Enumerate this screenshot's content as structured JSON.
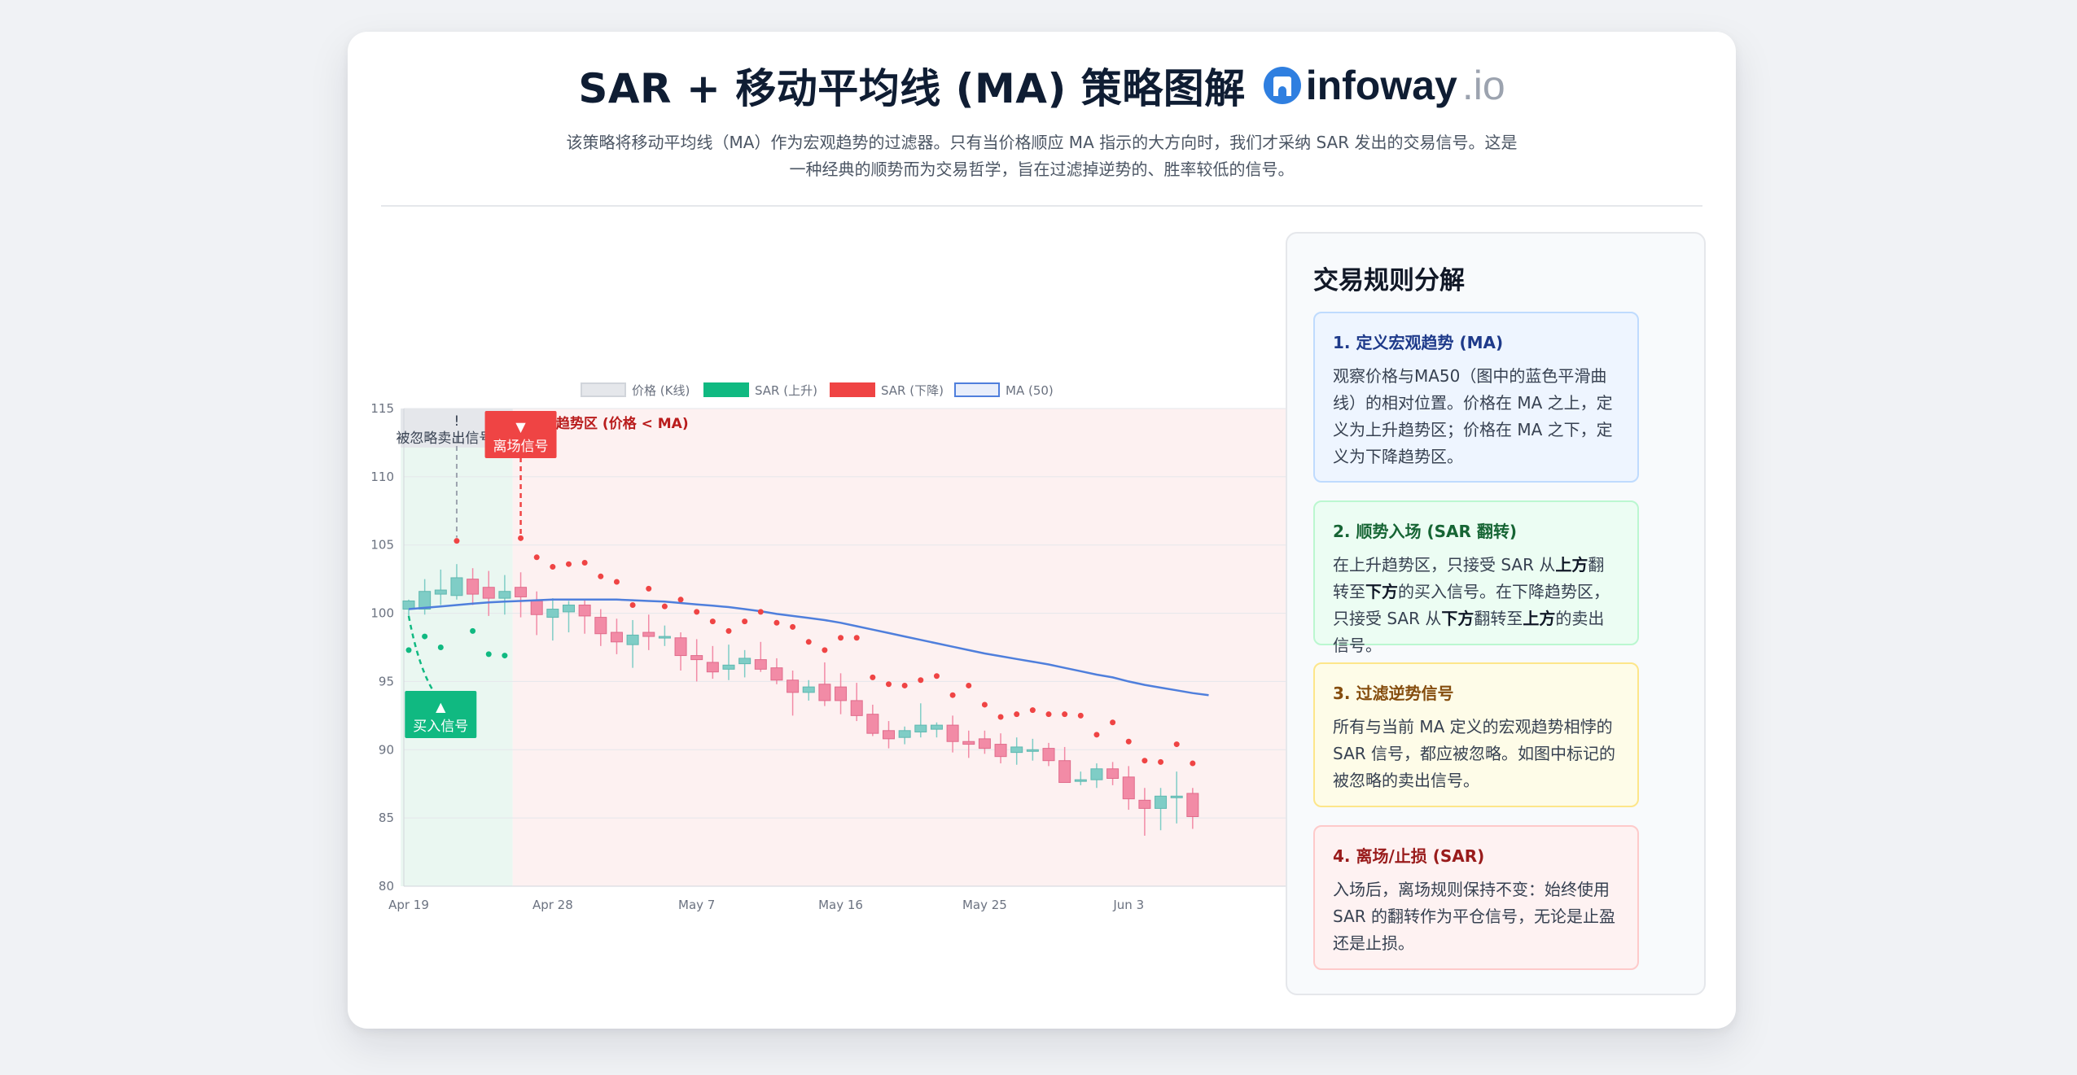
{
  "page": {
    "title": "SAR + 移动平均线 (MA) 策略图解",
    "brand_name": "infoway",
    "brand_tld": ".io",
    "subtitle": "该策略将移动平均线（MA）作为宏观趋势的过滤器。只有当价格顺应 MA 指示的大方向时，我们才采纳 SAR 发出的交易信号。这是一种经典的顺势而为交易哲学，旨在过滤掉逆势的、胜率较低的信号。"
  },
  "rules": {
    "title": "交易规则分解",
    "items": [
      {
        "heading": "1. 定义宏观趋势 (MA)",
        "parts": [
          {
            "t": "观察价格与MA50（图中的蓝色平滑曲线）的相对位置。价格在 MA 之上，定义为上升趋势区；价格在 MA 之下，定义为下降趋势区。"
          }
        ]
      },
      {
        "heading": "2. 顺势入场 (SAR 翻转)",
        "parts": [
          {
            "t": "在上升趋势区，只接受 SAR 从"
          },
          {
            "t": "上方",
            "b": true
          },
          {
            "t": "翻转至"
          },
          {
            "t": "下方",
            "b": true
          },
          {
            "t": "的买入信号。在下降趋势区，只接受 SAR 从"
          },
          {
            "t": "下方",
            "b": true
          },
          {
            "t": "翻转至"
          },
          {
            "t": "上方",
            "b": true
          },
          {
            "t": "的卖出信号。"
          }
        ]
      },
      {
        "heading": "3. 过滤逆势信号",
        "parts": [
          {
            "t": "所有与当前 MA 定义的宏观趋势相悖的 SAR 信号，都应被忽略。如图中标记的被忽略的卖出信号。"
          }
        ]
      },
      {
        "heading": "4. 离场/止损 (SAR)",
        "parts": [
          {
            "t": "入场后，离场规则保持不变：始终使用 SAR 的翻转作为平仓信号，无论是止盈还是止损。"
          }
        ]
      }
    ]
  },
  "colors": {
    "up": "#7fcdc6",
    "down": "#f28ba6",
    "sar_up": "#10b981",
    "sar_down": "#ef4444",
    "ma": "#4f7fdc",
    "uptrend_zone": "#eaf7f1",
    "downtrend_zone": "#fdf1f1",
    "ignored_zone": "#e5e7eb"
  },
  "chart_data": {
    "type": "candlestick",
    "title": "",
    "legend": [
      "价格 (K线)",
      "SAR (上升)",
      "SAR (下降)",
      "MA (50)"
    ],
    "legend_position": "top-center",
    "ylim": [
      80,
      115
    ],
    "yticks": [
      80,
      85,
      90,
      95,
      100,
      105,
      110,
      115
    ],
    "xticks": [
      "Apr 19",
      "Apr 28",
      "May 7",
      "May 16",
      "May 25",
      "Jun 3"
    ],
    "grid": true,
    "dates": [
      "Apr 19",
      "Apr 20",
      "Apr 21",
      "Apr 22",
      "Apr 23",
      "Apr 24",
      "Apr 25",
      "Apr 26",
      "Apr 27",
      "Apr 28",
      "Apr 29",
      "Apr 30",
      "May 1",
      "May 2",
      "May 3",
      "May 4",
      "May 5",
      "May 6",
      "May 7",
      "May 8",
      "May 9",
      "May 10",
      "May 11",
      "May 12",
      "May 13",
      "May 14",
      "May 15",
      "May 16",
      "May 17",
      "May 18",
      "May 19",
      "May 20",
      "May 21",
      "May 22",
      "May 23",
      "May 24",
      "May 25",
      "May 26",
      "May 27",
      "May 28",
      "May 29",
      "May 30",
      "May 31",
      "Jun 1",
      "Jun 2",
      "Jun 3",
      "Jun 4",
      "Jun 5",
      "Jun 6",
      "Jun 7",
      "Jun 8"
    ],
    "ohlc": [
      [
        100.3,
        101.0,
        99.8,
        100.9
      ],
      [
        100.3,
        102.5,
        99.9,
        101.6
      ],
      [
        101.4,
        103.2,
        100.6,
        101.7
      ],
      [
        101.3,
        103.6,
        101.0,
        102.6
      ],
      [
        102.5,
        103.3,
        100.6,
        101.4
      ],
      [
        101.9,
        103.1,
        99.8,
        101.1
      ],
      [
        101.1,
        102.8,
        99.9,
        101.6
      ],
      [
        101.9,
        103.0,
        99.7,
        101.2
      ],
      [
        100.9,
        101.6,
        98.4,
        99.9
      ],
      [
        99.7,
        101.1,
        98.0,
        100.3
      ],
      [
        100.1,
        100.9,
        98.6,
        100.6
      ],
      [
        100.6,
        101.0,
        98.5,
        99.8
      ],
      [
        99.7,
        100.3,
        97.6,
        98.5
      ],
      [
        98.6,
        99.6,
        97.0,
        97.9
      ],
      [
        97.7,
        99.5,
        96.0,
        98.4
      ],
      [
        98.6,
        99.9,
        97.3,
        98.3
      ],
      [
        98.3,
        99.1,
        97.6,
        98.3
      ],
      [
        98.2,
        98.6,
        95.8,
        96.9
      ],
      [
        96.9,
        98.1,
        95.0,
        96.6
      ],
      [
        96.4,
        97.6,
        95.2,
        95.7
      ],
      [
        95.9,
        97.7,
        95.1,
        96.2
      ],
      [
        96.3,
        97.3,
        95.3,
        96.7
      ],
      [
        96.6,
        97.9,
        95.7,
        95.9
      ],
      [
        96.0,
        96.7,
        94.8,
        95.1
      ],
      [
        95.1,
        95.8,
        92.5,
        94.2
      ],
      [
        94.2,
        95.1,
        93.6,
        94.6
      ],
      [
        94.8,
        96.4,
        93.2,
        93.6
      ],
      [
        94.6,
        95.6,
        92.6,
        93.6
      ],
      [
        93.6,
        94.9,
        92.1,
        92.5
      ],
      [
        92.6,
        93.3,
        91.0,
        91.2
      ],
      [
        91.4,
        92.1,
        90.1,
        90.8
      ],
      [
        90.9,
        91.7,
        90.4,
        91.4
      ],
      [
        91.3,
        93.4,
        90.9,
        91.8
      ],
      [
        91.5,
        92.0,
        90.9,
        91.8
      ],
      [
        91.8,
        92.5,
        89.8,
        90.6
      ],
      [
        90.6,
        91.4,
        89.4,
        90.4
      ],
      [
        90.8,
        91.4,
        89.7,
        90.1
      ],
      [
        90.4,
        91.2,
        89.0,
        89.5
      ],
      [
        89.8,
        90.9,
        88.9,
        90.2
      ],
      [
        89.9,
        90.8,
        89.2,
        90.0
      ],
      [
        90.1,
        90.5,
        88.8,
        89.2
      ],
      [
        89.2,
        90.2,
        87.6,
        87.6
      ],
      [
        87.8,
        88.4,
        87.4,
        87.8
      ],
      [
        87.8,
        89.0,
        87.2,
        88.6
      ],
      [
        88.6,
        89.1,
        87.4,
        87.9
      ],
      [
        88.0,
        88.8,
        85.6,
        86.4
      ],
      [
        86.3,
        87.2,
        83.7,
        85.7
      ],
      [
        85.7,
        87.2,
        84.1,
        86.6
      ],
      [
        86.5,
        88.4,
        84.6,
        86.6
      ],
      [
        86.8,
        87.2,
        84.2,
        85.1
      ]
    ],
    "sar_up": [
      {
        "date": "Apr 19",
        "value": 97.3
      },
      {
        "date": "Apr 20",
        "value": 98.3
      },
      {
        "date": "Apr 21",
        "value": 97.5
      },
      {
        "date": "Apr 23",
        "value": 98.7
      },
      {
        "date": "Apr 24",
        "value": 97.0
      },
      {
        "date": "Apr 25",
        "value": 96.9
      }
    ],
    "sar_down": [
      {
        "date": "Apr 22",
        "value": 105.3
      },
      {
        "date": "Apr 26",
        "value": 105.5
      },
      {
        "date": "Apr 27",
        "value": 104.1
      },
      {
        "date": "Apr 28",
        "value": 103.4
      },
      {
        "date": "Apr 29",
        "value": 103.6
      },
      {
        "date": "Apr 30",
        "value": 103.7
      },
      {
        "date": "May 1",
        "value": 102.7
      },
      {
        "date": "May 2",
        "value": 102.3
      },
      {
        "date": "May 3",
        "value": 100.6
      },
      {
        "date": "May 4",
        "value": 101.8
      },
      {
        "date": "May 5",
        "value": 100.5
      },
      {
        "date": "May 6",
        "value": 101.0
      },
      {
        "date": "May 7",
        "value": 100.1
      },
      {
        "date": "May 8",
        "value": 99.4
      },
      {
        "date": "May 9",
        "value": 98.7
      },
      {
        "date": "May 10",
        "value": 99.4
      },
      {
        "date": "May 11",
        "value": 100.1
      },
      {
        "date": "May 12",
        "value": 99.3
      },
      {
        "date": "May 13",
        "value": 99.0
      },
      {
        "date": "May 14",
        "value": 97.9
      },
      {
        "date": "May 15",
        "value": 97.3
      },
      {
        "date": "May 16",
        "value": 98.2
      },
      {
        "date": "May 17",
        "value": 98.2
      },
      {
        "date": "May 18",
        "value": 95.3
      },
      {
        "date": "May 19",
        "value": 94.8
      },
      {
        "date": "May 20",
        "value": 94.7
      },
      {
        "date": "May 21",
        "value": 95.1
      },
      {
        "date": "May 22",
        "value": 95.4
      },
      {
        "date": "May 23",
        "value": 94.0
      },
      {
        "date": "May 24",
        "value": 94.7
      },
      {
        "date": "May 25",
        "value": 93.3
      },
      {
        "date": "May 26",
        "value": 92.4
      },
      {
        "date": "May 27",
        "value": 92.6
      },
      {
        "date": "May 28",
        "value": 92.9
      },
      {
        "date": "May 29",
        "value": 92.6
      },
      {
        "date": "May 30",
        "value": 92.6
      },
      {
        "date": "May 31",
        "value": 92.5
      },
      {
        "date": "Jun 1",
        "value": 91.1
      },
      {
        "date": "Jun 2",
        "value": 92.0
      },
      {
        "date": "Jun 3",
        "value": 90.6
      },
      {
        "date": "Jun 4",
        "value": 89.2
      },
      {
        "date": "Jun 5",
        "value": 89.1
      },
      {
        "date": "Jun 6",
        "value": 90.4
      },
      {
        "date": "Jun 7",
        "value": 89.0
      }
    ],
    "ma": [
      100.3,
      100.4,
      100.5,
      100.6,
      100.7,
      100.8,
      100.85,
      100.9,
      100.95,
      101.0,
      101.0,
      101.0,
      101.0,
      101.0,
      100.95,
      100.9,
      100.85,
      100.75,
      100.65,
      100.55,
      100.45,
      100.3,
      100.15,
      99.95,
      99.8,
      99.65,
      99.5,
      99.3,
      99.05,
      98.8,
      98.55,
      98.3,
      98.05,
      97.8,
      97.55,
      97.3,
      97.05,
      96.85,
      96.65,
      96.45,
      96.25,
      96.0,
      95.75,
      95.5,
      95.3,
      95.0,
      94.75,
      94.55,
      94.35,
      94.15,
      94.0
    ],
    "zones": [
      {
        "name": "uptrend",
        "from": "Apr 19",
        "to": "Apr 26"
      },
      {
        "name": "downtrend",
        "from": "Apr 26",
        "to": "Jun 8"
      },
      {
        "name": "ignored",
        "from": "Apr 19",
        "to": "Apr 26"
      }
    ],
    "annotations": {
      "buy": {
        "label": "买入信号",
        "arrow": "▲",
        "date": "Apr 21",
        "anchor": 97.5
      },
      "exit": {
        "label": "离场信号",
        "arrow": "▼",
        "date": "Apr 26",
        "anchor": 105.5
      },
      "ignored": {
        "label": "被忽略卖出信号",
        "mark": "!",
        "date": "Apr 22",
        "anchor": 105.3
      },
      "downtrend": {
        "label": "下降趋势区 (价格 < MA)"
      }
    }
  }
}
